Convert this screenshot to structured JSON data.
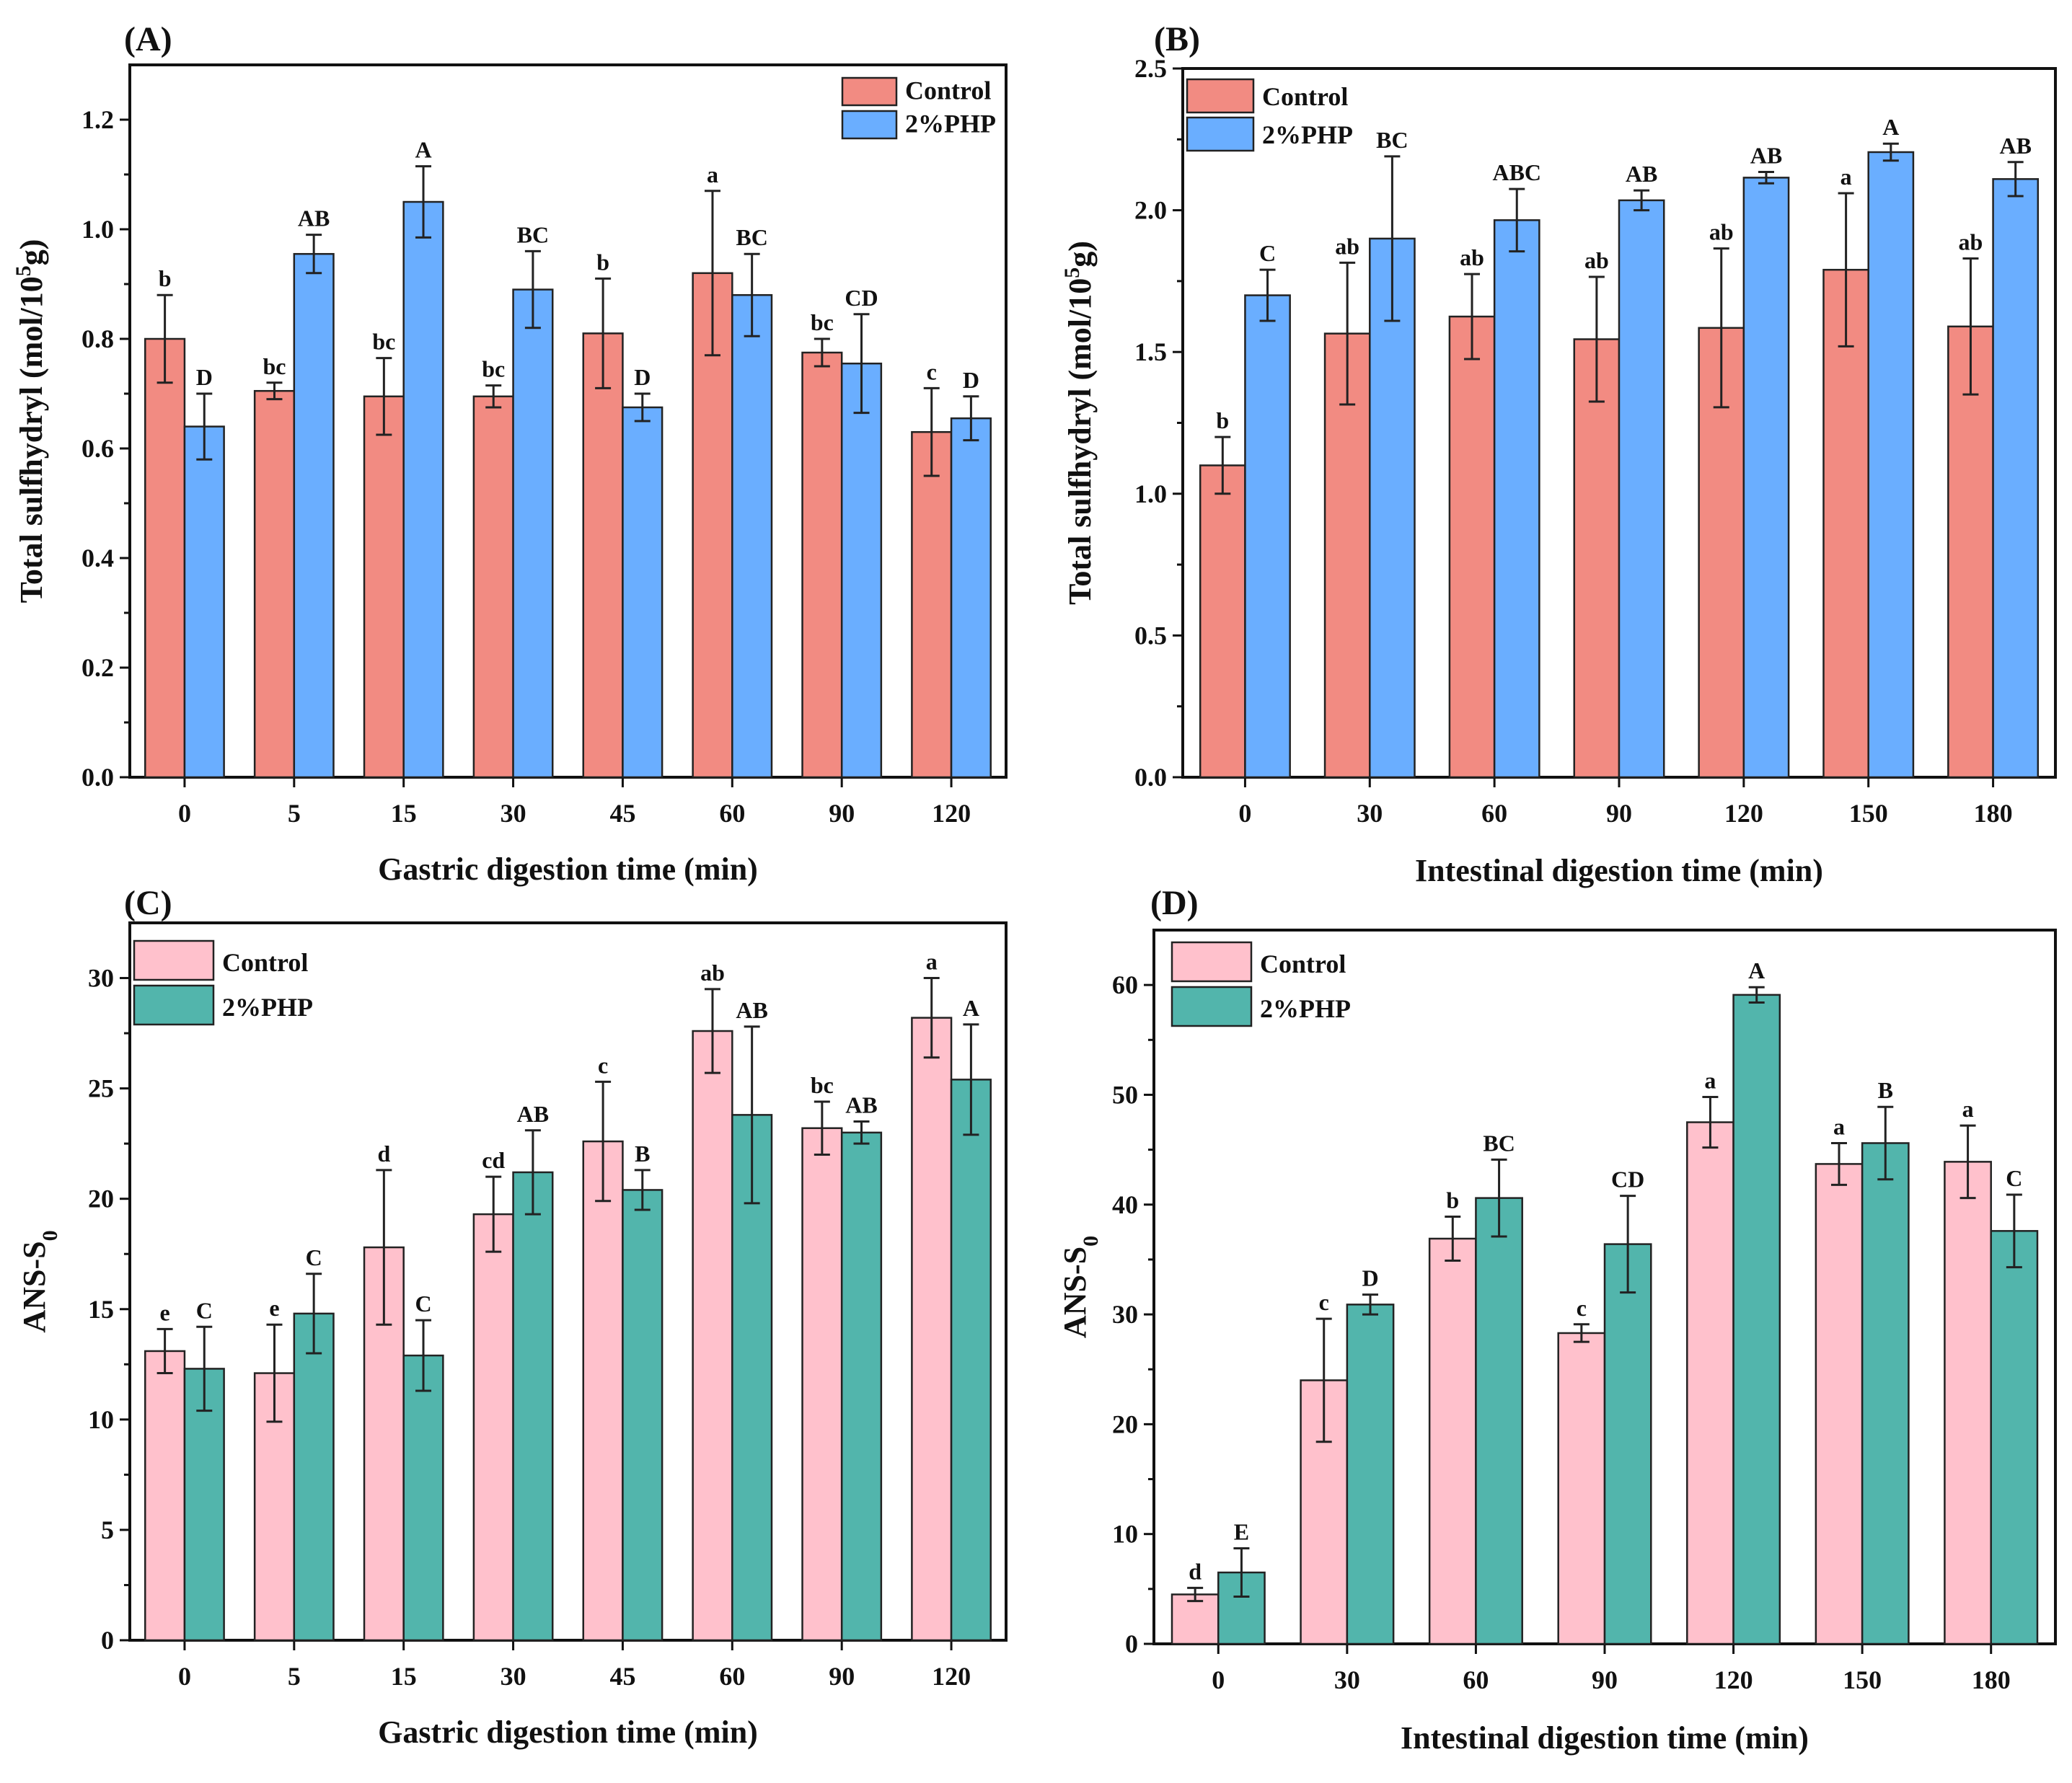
{
  "colors": {
    "A_control": "#F28B82",
    "A_php": "#6AAEFF",
    "B_control": "#F28B82",
    "B_php": "#6AAEFF",
    "C_control": "#FFC1CC",
    "C_php": "#52B5AC",
    "D_control": "#FFC1CC",
    "D_php": "#52B5AC"
  },
  "chart_data": [
    {
      "panel": "(A)",
      "type": "bar",
      "xlabel": "Gastric digestion time (min)",
      "ylabel": "Total sulfhydryl (mol/10⁵g)",
      "ylim": [
        0,
        1.3
      ],
      "yticks": [
        "0.0",
        "0.2",
        "0.4",
        "0.6",
        "0.8",
        "1.0",
        "1.2"
      ],
      "categories": [
        "0",
        "5",
        "15",
        "30",
        "45",
        "60",
        "90",
        "120"
      ],
      "legend": {
        "position": "top-right",
        "labels": [
          "Control",
          "2%PHP"
        ]
      },
      "series": [
        {
          "name": "Control",
          "values": [
            0.8,
            0.705,
            0.695,
            0.695,
            0.81,
            0.92,
            0.775,
            0.63
          ],
          "errors": [
            0.08,
            0.015,
            0.07,
            0.02,
            0.1,
            0.15,
            0.025,
            0.08
          ],
          "letters": [
            "b",
            "bc",
            "bc",
            "bc",
            "b",
            "a",
            "bc",
            "c"
          ]
        },
        {
          "name": "2%PHP",
          "values": [
            0.64,
            0.955,
            1.05,
            0.89,
            0.675,
            0.88,
            0.755,
            0.655
          ],
          "errors": [
            0.06,
            0.035,
            0.065,
            0.07,
            0.025,
            0.075,
            0.09,
            0.04
          ],
          "letters": [
            "D",
            "AB",
            "A",
            "BC",
            "D",
            "BC",
            "CD",
            "D"
          ]
        }
      ]
    },
    {
      "panel": "(B)",
      "type": "bar",
      "xlabel": "Intestinal digestion time (min)",
      "ylabel": "Total sulfhydryl (mol/10⁵g)",
      "ylim": [
        0,
        2.5
      ],
      "yticks": [
        "0.0",
        "0.5",
        "1.0",
        "1.5",
        "2.0",
        "2.5"
      ],
      "categories": [
        "0",
        "30",
        "60",
        "90",
        "120",
        "150",
        "180"
      ],
      "legend": {
        "position": "top-left",
        "labels": [
          "Control",
          "2%PHP"
        ]
      },
      "series": [
        {
          "name": "Control",
          "values": [
            1.1,
            1.565,
            1.625,
            1.545,
            1.585,
            1.79,
            1.59
          ],
          "errors": [
            0.1,
            0.25,
            0.15,
            0.22,
            0.28,
            0.27,
            0.24
          ],
          "letters": [
            "b",
            "ab",
            "ab",
            "ab",
            "ab",
            "a",
            "ab"
          ]
        },
        {
          "name": "2%PHP",
          "values": [
            1.7,
            1.9,
            1.965,
            2.035,
            2.115,
            2.205,
            2.11
          ],
          "errors": [
            0.09,
            0.29,
            0.11,
            0.035,
            0.02,
            0.03,
            0.06
          ],
          "letters": [
            "C",
            "BC",
            "ABC",
            "AB",
            "AB",
            "A",
            "AB"
          ]
        }
      ]
    },
    {
      "panel": "(C)",
      "type": "bar",
      "xlabel": "Gastric digestion time (min)",
      "ylabel": "ANS-S₀",
      "ylim": [
        0,
        32.5
      ],
      "yticks": [
        "0",
        "5",
        "10",
        "15",
        "20",
        "25",
        "30"
      ],
      "categories": [
        "0",
        "5",
        "15",
        "30",
        "45",
        "60",
        "90",
        "120"
      ],
      "legend": {
        "position": "top-left",
        "labels": [
          "Control",
          "2%PHP"
        ]
      },
      "series": [
        {
          "name": "Control",
          "values": [
            13.1,
            12.1,
            17.8,
            19.3,
            22.6,
            27.6,
            23.2,
            28.2
          ],
          "errors": [
            1.0,
            2.2,
            3.5,
            1.7,
            2.7,
            1.9,
            1.2,
            1.8
          ],
          "letters": [
            "e",
            "e",
            "d",
            "cd",
            "c",
            "ab",
            "bc",
            "a"
          ]
        },
        {
          "name": "2%PHP",
          "values": [
            12.3,
            14.8,
            12.9,
            21.2,
            20.4,
            23.8,
            23.0,
            25.4
          ],
          "errors": [
            1.9,
            1.8,
            1.6,
            1.9,
            0.9,
            4.0,
            0.5,
            2.5
          ],
          "letters": [
            "C",
            "C",
            "C",
            "AB",
            "B",
            "AB",
            "AB",
            "A"
          ]
        }
      ]
    },
    {
      "panel": "(D)",
      "type": "bar",
      "xlabel": "Intestinal digestion time (min)",
      "ylabel": "ANS-S₀",
      "ylim": [
        0,
        65
      ],
      "yticks": [
        "0",
        "10",
        "20",
        "30",
        "40",
        "50",
        "60"
      ],
      "categories": [
        "0",
        "30",
        "60",
        "90",
        "120",
        "150",
        "180"
      ],
      "legend": {
        "position": "top-left",
        "labels": [
          "Control",
          "2%PHP"
        ]
      },
      "series": [
        {
          "name": "Control",
          "values": [
            4.5,
            24.0,
            36.9,
            28.3,
            47.5,
            43.7,
            43.9
          ],
          "errors": [
            0.6,
            5.6,
            2.0,
            0.8,
            2.3,
            1.9,
            3.3
          ],
          "letters": [
            "d",
            "c",
            "b",
            "c",
            "a",
            "a",
            "a"
          ]
        },
        {
          "name": "2%PHP",
          "values": [
            6.5,
            30.9,
            40.6,
            36.4,
            59.1,
            45.6,
            37.6
          ],
          "errors": [
            2.2,
            0.9,
            3.5,
            4.4,
            0.7,
            3.3,
            3.3
          ],
          "letters": [
            "E",
            "D",
            "BC",
            "CD",
            "A",
            "B",
            "C"
          ]
        }
      ]
    }
  ]
}
